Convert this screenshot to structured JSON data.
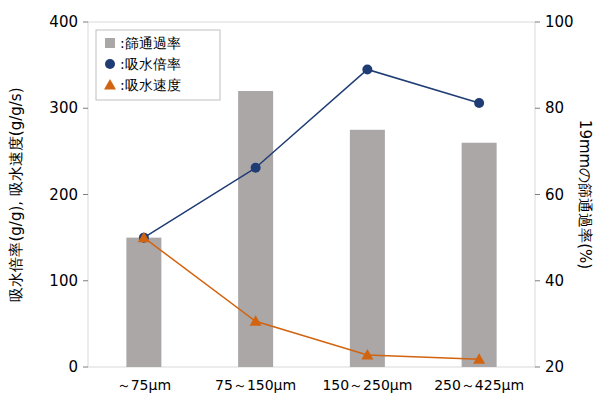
{
  "chart_data": {
    "type": "bar",
    "categories": [
      "～75μm",
      "75～150μm",
      "150～250μm",
      "250～425μm"
    ],
    "ylabel": "吸水倍率(g/g), 吸水速度(g/g/s)",
    "y2label": "19mmの篩通過率(%)",
    "ylim": [
      0,
      400
    ],
    "yticks": [
      0,
      100,
      200,
      300,
      400
    ],
    "y2lim": [
      20,
      100
    ],
    "y2ticks": [
      20,
      40,
      60,
      80,
      100
    ],
    "grid": false,
    "legend": "upper left",
    "series": [
      {
        "name": ":篩通過率",
        "type": "bar",
        "axis": "y2",
        "color": "#aba7a7",
        "values": [
          50,
          84,
          75,
          72
        ]
      },
      {
        "name": ":吸水倍率",
        "type": "line",
        "color": "#1f3c74",
        "marker": "circle",
        "line_style": "solid",
        "values": [
          150,
          231,
          345,
          306
        ]
      },
      {
        "name": ":吸水速度",
        "type": "line",
        "color": "#d2640f",
        "marker": "triangle",
        "line_style": "solid",
        "values": [
          150,
          53,
          14,
          9
        ]
      }
    ]
  }
}
